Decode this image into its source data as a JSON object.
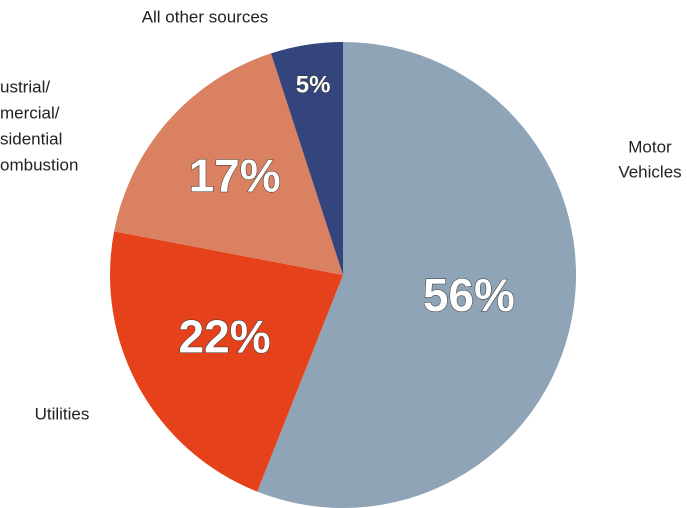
{
  "chart_data": {
    "type": "pie",
    "categories": [
      [
        "Motor",
        "Vehicles"
      ],
      [
        "Utilities"
      ],
      [
        "ustrial/",
        "mercial/",
        "sidential",
        "ombustion"
      ],
      [
        "All other sources"
      ]
    ],
    "values": [
      56,
      22,
      17,
      5
    ],
    "value_labels": [
      "56%",
      "22%",
      "17%",
      "5%"
    ],
    "colors": [
      "#8fa4b6",
      "#e5421b",
      "#d98160",
      "#34457e"
    ]
  }
}
